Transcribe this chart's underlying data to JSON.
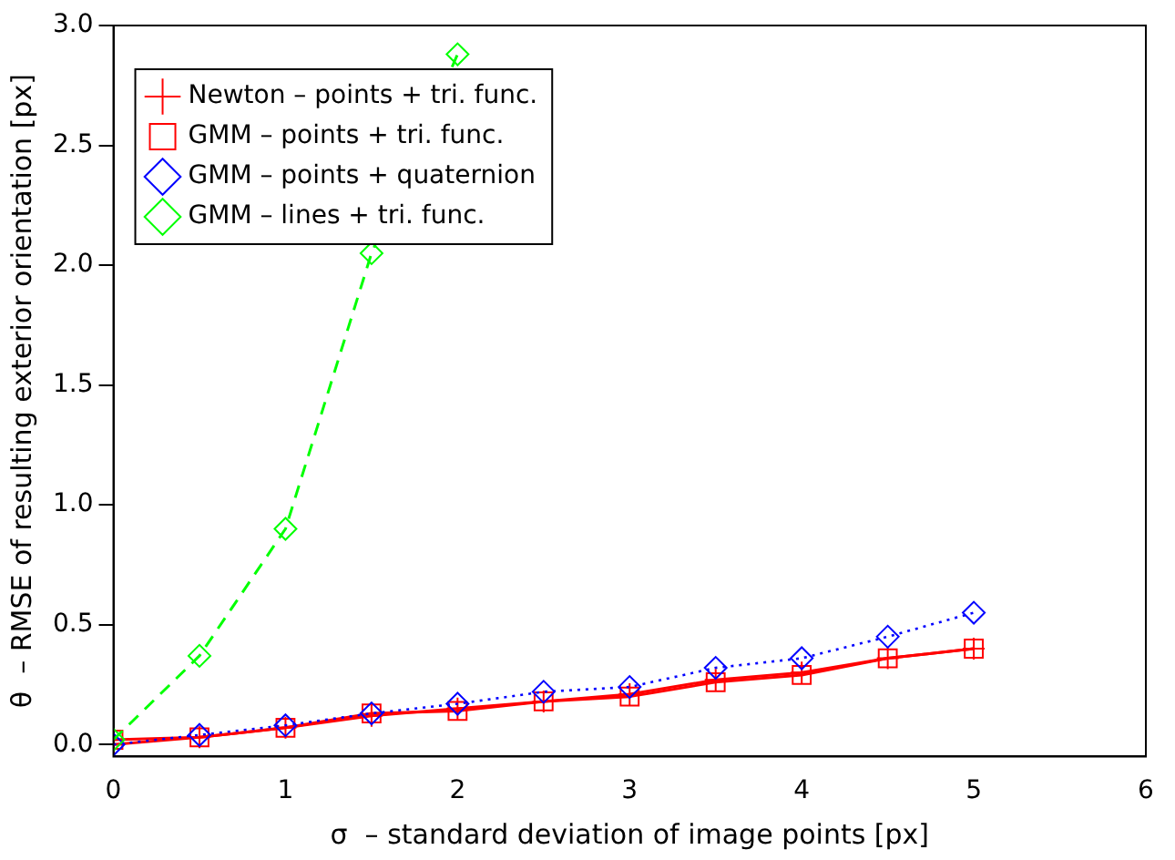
{
  "chart_data": {
    "type": "line",
    "xlabel": "σ  – standard deviation of image points [px]",
    "ylabel": "θ  – RMSE of resulting exterior orientation [px]",
    "xlim": [
      0,
      6
    ],
    "ylim": [
      -0.05,
      3.0
    ],
    "xticks": [
      0,
      1,
      2,
      3,
      4,
      5,
      6
    ],
    "yticks": [
      {
        "value": 0,
        "label": "0.0"
      },
      {
        "value": 0.5,
        "label": "0.5"
      },
      {
        "value": 1,
        "label": "1.0"
      },
      {
        "value": 1.5,
        "label": "1.5"
      },
      {
        "value": 2,
        "label": "2.0"
      },
      {
        "value": 2.5,
        "label": "2.5"
      },
      {
        "value": 3,
        "label": "3.0"
      }
    ],
    "grid": false,
    "legend": "top left",
    "series": [
      {
        "name": "Newton – points + tri. func.",
        "color": "#ff0000",
        "marker": "cross",
        "line_style": "solid",
        "x": [
          0,
          0.5,
          1,
          1.5,
          2,
          2.5,
          3,
          3.5,
          4,
          4.5,
          5
        ],
        "values": [
          0.0,
          0.03,
          0.07,
          0.12,
          0.15,
          0.18,
          0.21,
          0.27,
          0.3,
          0.36,
          0.4
        ]
      },
      {
        "name": "GMM – points + tri. func.",
        "color": "#ff0000",
        "marker": "square",
        "line_style": "solid",
        "x": [
          0,
          0.5,
          1,
          1.5,
          2,
          2.5,
          3,
          3.5,
          4,
          4.5,
          5
        ],
        "values": [
          0.02,
          0.03,
          0.07,
          0.13,
          0.14,
          0.18,
          0.2,
          0.26,
          0.29,
          0.36,
          0.4
        ]
      },
      {
        "name": "GMM – points + quaternion",
        "color": "#0000ff",
        "marker": "diamond",
        "line_style": "dotted",
        "x": [
          0,
          0.5,
          1,
          1.5,
          2,
          2.5,
          3,
          3.5,
          4,
          4.5,
          5
        ],
        "values": [
          0.0,
          0.04,
          0.08,
          0.13,
          0.17,
          0.22,
          0.24,
          0.32,
          0.36,
          0.45,
          0.55
        ]
      },
      {
        "name": "GMM – lines + tri. func.",
        "color": "#00ff00",
        "marker": "diamond",
        "line_style": "dashed",
        "x": [
          0,
          0.5,
          1,
          1.5,
          2
        ],
        "values": [
          0.02,
          0.37,
          0.9,
          2.05,
          2.88
        ]
      }
    ]
  }
}
